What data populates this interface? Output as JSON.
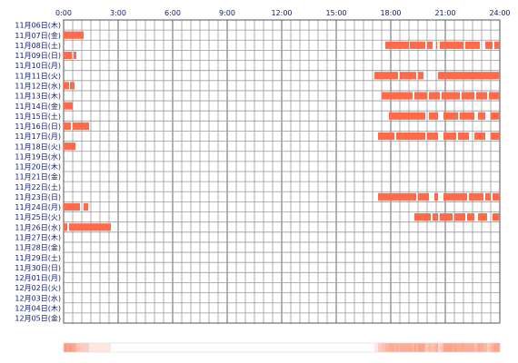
{
  "chart_data": {
    "type": "timeline",
    "title": "",
    "xlabel": "",
    "ylabel": "",
    "xlim": [
      0,
      24
    ],
    "x_ticks": [
      {
        "v": 0,
        "label": "0:00"
      },
      {
        "v": 3,
        "label": "3:00"
      },
      {
        "v": 6,
        "label": "6:00"
      },
      {
        "v": 9,
        "label": "9:00"
      },
      {
        "v": 12,
        "label": "12:00"
      },
      {
        "v": 15,
        "label": "15:00"
      },
      {
        "v": 18,
        "label": "18:00"
      },
      {
        "v": 21,
        "label": "21:00"
      },
      {
        "v": 24,
        "label": "24:00"
      }
    ],
    "grid": true,
    "bar_color": "#ff6a4a",
    "heat_strip_colors": [
      "#ffffff",
      "#ff9a80"
    ],
    "rows": [
      {
        "label": "11月06日(木)",
        "segments": []
      },
      {
        "label": "11月07日(金)",
        "segments": [
          [
            0.0,
            1.1
          ]
        ]
      },
      {
        "label": "11月08日(土)",
        "segments": [
          [
            17.7,
            19.0
          ],
          [
            19.05,
            19.9
          ],
          [
            20.0,
            20.3
          ],
          [
            20.5,
            20.55
          ],
          [
            20.7,
            22.0
          ],
          [
            22.1,
            22.9
          ],
          [
            23.2,
            23.6
          ],
          [
            23.7,
            24.0
          ]
        ]
      },
      {
        "label": "11月09日(日)",
        "segments": [
          [
            0.0,
            0.45
          ],
          [
            0.55,
            0.7
          ]
        ]
      },
      {
        "label": "11月10日(月)",
        "segments": []
      },
      {
        "label": "11月11日(火)",
        "segments": [
          [
            17.1,
            18.4
          ],
          [
            18.5,
            19.4
          ],
          [
            19.5,
            19.8
          ],
          [
            20.6,
            24.0
          ]
        ]
      },
      {
        "label": "11月12日(水)",
        "segments": [
          [
            0.0,
            0.3
          ],
          [
            0.35,
            0.6
          ]
        ]
      },
      {
        "label": "11月13日(木)",
        "segments": [
          [
            17.5,
            19.2
          ],
          [
            19.3,
            20.0
          ],
          [
            20.1,
            20.7
          ],
          [
            20.8,
            21.8
          ],
          [
            21.9,
            22.6
          ],
          [
            22.7,
            23.3
          ],
          [
            23.4,
            24.0
          ]
        ]
      },
      {
        "label": "11月14日(金)",
        "segments": [
          [
            0.0,
            0.5
          ]
        ]
      },
      {
        "label": "11月15日(土)",
        "segments": [
          [
            17.9,
            19.9
          ],
          [
            20.1,
            20.6
          ],
          [
            20.9,
            21.7
          ],
          [
            21.8,
            22.6
          ],
          [
            22.8,
            23.2
          ],
          [
            23.5,
            24.0
          ]
        ]
      },
      {
        "label": "11月16日(日)",
        "segments": [
          [
            0.0,
            0.4
          ],
          [
            0.5,
            1.4
          ]
        ]
      },
      {
        "label": "11月17日(月)",
        "segments": [
          [
            17.3,
            18.2
          ],
          [
            18.3,
            19.9
          ],
          [
            20.0,
            20.6
          ],
          [
            20.9,
            21.6
          ],
          [
            21.7,
            22.3
          ],
          [
            22.6,
            23.2
          ],
          [
            23.5,
            24.0
          ]
        ]
      },
      {
        "label": "11月18日(火)",
        "segments": [
          [
            0.0,
            0.65
          ]
        ]
      },
      {
        "label": "11月19日(水)",
        "segments": []
      },
      {
        "label": "11月20日(木)",
        "segments": []
      },
      {
        "label": "11月21日(金)",
        "segments": []
      },
      {
        "label": "11月22日(土)",
        "segments": []
      },
      {
        "label": "11月23日(日)",
        "segments": [
          [
            17.3,
            19.4
          ],
          [
            19.5,
            20.1
          ],
          [
            20.4,
            20.6
          ],
          [
            20.9,
            22.2
          ],
          [
            22.3,
            23.1
          ],
          [
            23.2,
            23.5
          ],
          [
            23.6,
            24.0
          ]
        ]
      },
      {
        "label": "11月24日(月)",
        "segments": [
          [
            0.0,
            0.9
          ],
          [
            1.1,
            1.35
          ]
        ]
      },
      {
        "label": "11月25日(火)",
        "segments": [
          [
            19.3,
            20.2
          ],
          [
            20.3,
            20.6
          ],
          [
            20.7,
            21.4
          ],
          [
            21.5,
            22.1
          ],
          [
            22.2,
            22.6
          ],
          [
            22.8,
            23.3
          ],
          [
            23.6,
            24.0
          ]
        ]
      },
      {
        "label": "11月26日(水)",
        "segments": [
          [
            0.0,
            0.2
          ],
          [
            0.3,
            2.6
          ]
        ]
      },
      {
        "label": "11月27日(木)",
        "segments": []
      },
      {
        "label": "11月28日(金)",
        "segments": []
      },
      {
        "label": "11月29日(土)",
        "segments": []
      },
      {
        "label": "11月30日(日)",
        "segments": []
      },
      {
        "label": "12月01日(月)",
        "segments": []
      },
      {
        "label": "12月02日(火)",
        "segments": []
      },
      {
        "label": "12月03日(水)",
        "segments": []
      },
      {
        "label": "12月04日(木)",
        "segments": []
      },
      {
        "label": "12月05日(金)",
        "segments": []
      }
    ]
  }
}
